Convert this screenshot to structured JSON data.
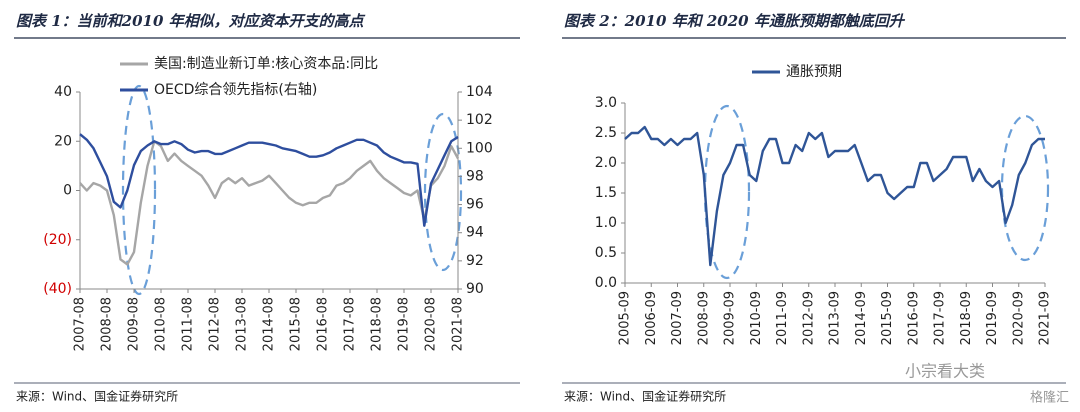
{
  "watermark": [
    "小宗看大类",
    "格隆汇"
  ],
  "chart_data": [
    {
      "type": "line",
      "title": "图表 1：当前和2010 年相似，对应资本开支的高点",
      "source": "来源：Wind、国金证券研究所",
      "x": [
        "2007-08",
        "2007-11",
        "2008-02",
        "2008-05",
        "2008-08",
        "2008-11",
        "2009-02",
        "2009-05",
        "2009-08",
        "2009-11",
        "2010-02",
        "2010-05",
        "2010-08",
        "2010-11",
        "2011-02",
        "2011-05",
        "2011-08",
        "2011-11",
        "2012-02",
        "2012-05",
        "2012-08",
        "2012-11",
        "2013-02",
        "2013-05",
        "2013-08",
        "2013-11",
        "2014-02",
        "2014-05",
        "2014-08",
        "2014-11",
        "2015-02",
        "2015-05",
        "2015-08",
        "2015-11",
        "2016-02",
        "2016-05",
        "2016-08",
        "2016-11",
        "2017-02",
        "2017-05",
        "2017-08",
        "2017-11",
        "2018-02",
        "2018-05",
        "2018-08",
        "2018-11",
        "2019-02",
        "2019-05",
        "2019-08",
        "2019-11",
        "2020-02",
        "2020-05",
        "2020-08",
        "2020-11",
        "2021-02",
        "2021-05",
        "2021-08"
      ],
      "xticks": [
        "2007-08",
        "2008-08",
        "2009-08",
        "2010-08",
        "2011-08",
        "2012-08",
        "2013-08",
        "2014-08",
        "2015-08",
        "2016-08",
        "2017-08",
        "2018-08",
        "2019-08",
        "2020-08",
        "2021-08"
      ],
      "ylim": [
        -40,
        40
      ],
      "yticks": [
        {
          "value": -40,
          "label": "(40)"
        },
        {
          "value": -20,
          "label": "(20)"
        },
        0,
        20,
        40
      ],
      "y2lim": [
        90,
        104
      ],
      "y2ticks": [
        90,
        92,
        94,
        96,
        98,
        100,
        102,
        104
      ],
      "series": [
        {
          "name": "美国:制造业新订单:核心资本品:同比",
          "color": "#a6a6a6",
          "values": [
            3,
            0,
            3,
            2,
            0,
            -10,
            -28,
            -30,
            -25,
            -5,
            10,
            20,
            18,
            12,
            15,
            12,
            10,
            8,
            6,
            2,
            -3,
            3,
            5,
            3,
            5,
            2,
            3,
            4,
            6,
            3,
            0,
            -3,
            -5,
            -6,
            -5,
            -5,
            -3,
            -2,
            2,
            3,
            5,
            8,
            10,
            12,
            8,
            5,
            3,
            1,
            -1,
            -2,
            0,
            -12,
            2,
            5,
            10,
            18,
            13
          ]
        },
        {
          "name": "OECD综合领先指标(右轴)",
          "color": "#2e4e9e",
          "axis": "y2",
          "values": [
            101.0,
            100.6,
            100,
            99,
            98,
            96.2,
            95.8,
            97,
            98.8,
            99.8,
            100.2,
            100.5,
            100.3,
            100.3,
            100.5,
            100.3,
            99.9,
            99.7,
            99.8,
            99.8,
            99.6,
            99.6,
            99.8,
            100,
            100.2,
            100.4,
            100.4,
            100.4,
            100.3,
            100.2,
            100,
            99.9,
            99.8,
            99.6,
            99.4,
            99.4,
            99.5,
            99.7,
            100,
            100.2,
            100.4,
            100.6,
            100.6,
            100.4,
            100.2,
            99.7,
            99.4,
            99.2,
            99.0,
            99.0,
            98.9,
            94.5,
            97.5,
            98.5,
            99.5,
            100.5,
            100.8
          ]
        }
      ]
    },
    {
      "type": "line",
      "title": "图表 2：2010 年和 2020 年通胀预期都触底回升",
      "source": "来源：Wind、国金证券研究所",
      "x": [
        "2005-09",
        "2005-12",
        "2006-03",
        "2006-06",
        "2006-09",
        "2006-12",
        "2007-03",
        "2007-06",
        "2007-09",
        "2007-12",
        "2008-03",
        "2008-06",
        "2008-09",
        "2008-12",
        "2009-03",
        "2009-06",
        "2009-09",
        "2009-12",
        "2010-03",
        "2010-06",
        "2010-09",
        "2010-12",
        "2011-03",
        "2011-06",
        "2011-09",
        "2011-12",
        "2012-03",
        "2012-06",
        "2012-09",
        "2012-12",
        "2013-03",
        "2013-06",
        "2013-09",
        "2013-12",
        "2014-03",
        "2014-06",
        "2014-09",
        "2014-12",
        "2015-03",
        "2015-06",
        "2015-09",
        "2015-12",
        "2016-03",
        "2016-06",
        "2016-09",
        "2016-12",
        "2017-03",
        "2017-06",
        "2017-09",
        "2017-12",
        "2018-03",
        "2018-06",
        "2018-09",
        "2018-12",
        "2019-03",
        "2019-06",
        "2019-09",
        "2019-12",
        "2020-03",
        "2020-06",
        "2020-09",
        "2020-12",
        "2021-03",
        "2021-06",
        "2021-09"
      ],
      "xticks": [
        "2005-09",
        "2006-09",
        "2007-09",
        "2008-09",
        "2009-09",
        "2010-09",
        "2011-09",
        "2012-09",
        "2013-09",
        "2014-09",
        "2015-09",
        "2016-09",
        "2017-09",
        "2018-09",
        "2019-09",
        "2020-09",
        "2021-09"
      ],
      "ylim": [
        0,
        3
      ],
      "yticks": [
        {
          "value": 0,
          "label": "0.0"
        },
        0.5,
        {
          "value": 1,
          "label": "1.0"
        },
        1.5,
        {
          "value": 2,
          "label": "2.0"
        },
        2.5,
        {
          "value": 3,
          "label": "3.0"
        }
      ],
      "series": [
        {
          "name": "通胀预期",
          "color": "#2f5597",
          "values": [
            2.4,
            2.5,
            2.5,
            2.6,
            2.4,
            2.4,
            2.3,
            2.4,
            2.3,
            2.4,
            2.4,
            2.5,
            1.8,
            0.3,
            1.2,
            1.8,
            2.0,
            2.3,
            2.3,
            1.8,
            1.7,
            2.2,
            2.4,
            2.4,
            2.0,
            2.0,
            2.3,
            2.2,
            2.5,
            2.4,
            2.5,
            2.1,
            2.2,
            2.2,
            2.2,
            2.3,
            2.0,
            1.7,
            1.8,
            1.8,
            1.5,
            1.4,
            1.5,
            1.6,
            1.6,
            2.0,
            2.0,
            1.7,
            1.8,
            1.9,
            2.1,
            2.1,
            2.1,
            1.7,
            1.9,
            1.7,
            1.6,
            1.7,
            1.0,
            1.3,
            1.8,
            2.0,
            2.3,
            2.4,
            2.4
          ]
        }
      ]
    }
  ]
}
